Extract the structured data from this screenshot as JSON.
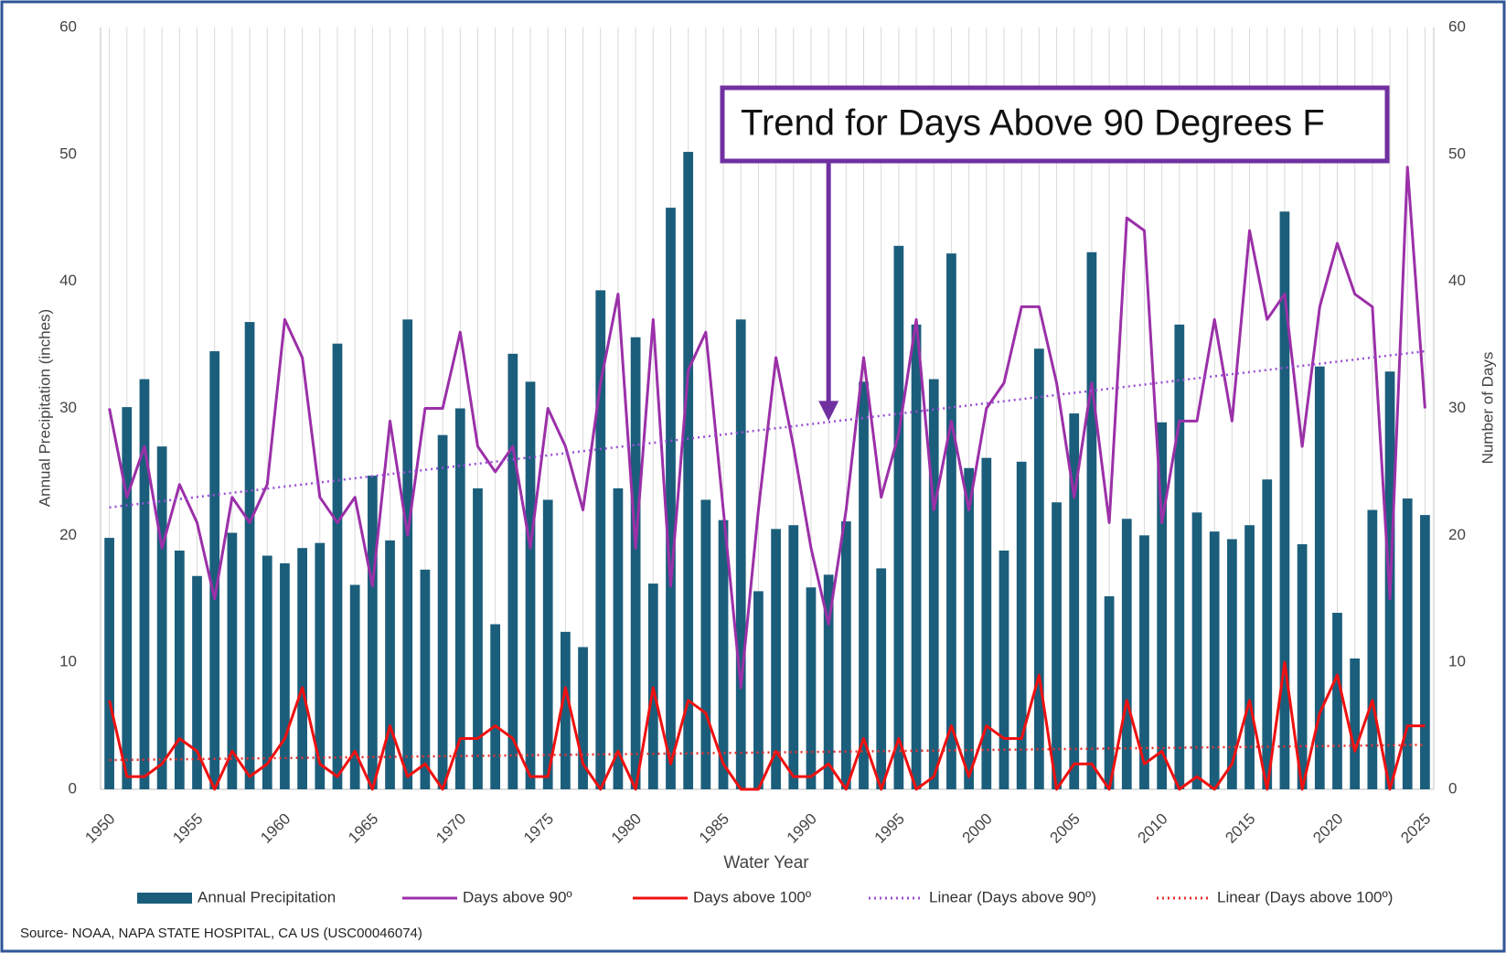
{
  "chart_data": {
    "type": "bar_line",
    "xlabel": "Water Year",
    "ylabel": "Annual Precipitation (inches)",
    "y2label": "Number of Days",
    "source": "Source- NOAA, NAPA STATE HOSPITAL, CA US (USC00046074)",
    "annotation": {
      "text": "Trend for Days Above 90 Degrees F",
      "x": 1991,
      "y": 29,
      "axis": "y2"
    },
    "x": [
      1950,
      1951,
      1952,
      1953,
      1954,
      1955,
      1956,
      1957,
      1958,
      1959,
      1960,
      1961,
      1962,
      1963,
      1964,
      1965,
      1966,
      1967,
      1968,
      1969,
      1970,
      1971,
      1972,
      1973,
      1974,
      1975,
      1976,
      1977,
      1978,
      1979,
      1980,
      1981,
      1982,
      1983,
      1984,
      1985,
      1986,
      1987,
      1988,
      1989,
      1990,
      1991,
      1992,
      1993,
      1994,
      1995,
      1996,
      1997,
      1998,
      1999,
      2000,
      2001,
      2002,
      2003,
      2004,
      2005,
      2006,
      2007,
      2008,
      2009,
      2010,
      2011,
      2012,
      2013,
      2014,
      2015,
      2016,
      2017,
      2018,
      2019,
      2020,
      2021,
      2022,
      2023,
      2024,
      2025
    ],
    "xlim": [
      1949.5,
      2025.5
    ],
    "xticks": [
      1950,
      1955,
      1960,
      1965,
      1970,
      1975,
      1980,
      1985,
      1990,
      1995,
      2000,
      2005,
      2010,
      2015,
      2020,
      2025
    ],
    "ylim": [
      0,
      60
    ],
    "yticks": [
      0,
      10,
      20,
      30,
      40,
      50,
      60
    ],
    "y2lim": [
      0,
      60
    ],
    "y2ticks": [
      0,
      10,
      20,
      30,
      40,
      50,
      60
    ],
    "grid": "x",
    "legend": "bottom",
    "series": [
      {
        "name": "Annual Precipitation",
        "kind": "bar",
        "color": "#1b5e7b",
        "values": [
          19.8,
          30.1,
          32.3,
          27.0,
          18.8,
          16.8,
          34.5,
          20.2,
          36.8,
          18.4,
          17.8,
          19.0,
          19.4,
          35.1,
          16.1,
          24.7,
          19.6,
          37.0,
          17.3,
          27.9,
          30.0,
          23.7,
          13.0,
          34.3,
          32.1,
          22.8,
          12.4,
          11.2,
          39.3,
          23.7,
          35.6,
          16.2,
          45.8,
          50.2,
          22.8,
          21.2,
          37.0,
          15.6,
          20.5,
          20.8,
          15.9,
          16.9,
          21.1,
          32.1,
          17.4,
          42.8,
          36.6,
          32.3,
          42.2,
          25.3,
          26.1,
          18.8,
          25.8,
          34.7,
          22.6,
          29.6,
          42.3,
          15.2,
          21.3,
          20.0,
          28.9,
          36.6,
          21.8,
          20.3,
          19.7,
          20.8,
          24.4,
          45.5,
          19.3,
          33.3,
          13.9,
          10.3,
          22.0,
          32.9,
          22.9,
          21.6
        ]
      },
      {
        "name": "Days above 90º",
        "kind": "line",
        "axis": "y2",
        "color": "#9b30a8",
        "values": [
          30,
          23,
          27,
          19,
          24,
          21,
          15,
          23,
          21,
          24,
          37,
          34,
          23,
          21,
          23,
          16,
          29,
          20,
          30,
          30,
          36,
          27,
          25,
          27,
          19,
          30,
          27,
          22,
          32,
          39,
          19,
          37,
          16,
          33,
          36,
          22,
          8,
          22,
          34,
          27,
          19,
          13,
          22,
          34,
          23,
          28,
          37,
          22,
          29,
          22,
          30,
          32,
          38,
          38,
          32,
          23,
          32,
          21,
          45,
          44,
          21,
          29,
          29,
          37,
          29,
          44,
          37,
          39,
          27,
          38,
          43,
          39,
          38,
          15,
          49,
          30
        ]
      },
      {
        "name": "Days above 100º",
        "kind": "line",
        "axis": "y2",
        "color": "#ee1111",
        "values": [
          7,
          1,
          1,
          2,
          4,
          3,
          0,
          3,
          1,
          2,
          4,
          8,
          2,
          1,
          3,
          0,
          5,
          1,
          2,
          0,
          4,
          4,
          5,
          4,
          1,
          1,
          8,
          2,
          0,
          3,
          0,
          8,
          2,
          7,
          6,
          2,
          0,
          0,
          3,
          1,
          1,
          2,
          0,
          4,
          0,
          4,
          0,
          1,
          5,
          1,
          5,
          4,
          4,
          9,
          0,
          2,
          2,
          0,
          7,
          2,
          3,
          0,
          1,
          0,
          2,
          7,
          0,
          10,
          0,
          6,
          9,
          3,
          7,
          0,
          5,
          5
        ]
      },
      {
        "name": "Linear (Days above 90º)",
        "kind": "trend",
        "axis": "y2",
        "color": "#9b4fd6",
        "x": [
          1950,
          2025
        ],
        "values": [
          22.2,
          34.5
        ]
      },
      {
        "name": "Linear (Days above 100º)",
        "kind": "trend",
        "axis": "y2",
        "color": "#e83030",
        "x": [
          1950,
          2025
        ],
        "values": [
          2.3,
          3.5
        ]
      }
    ]
  }
}
